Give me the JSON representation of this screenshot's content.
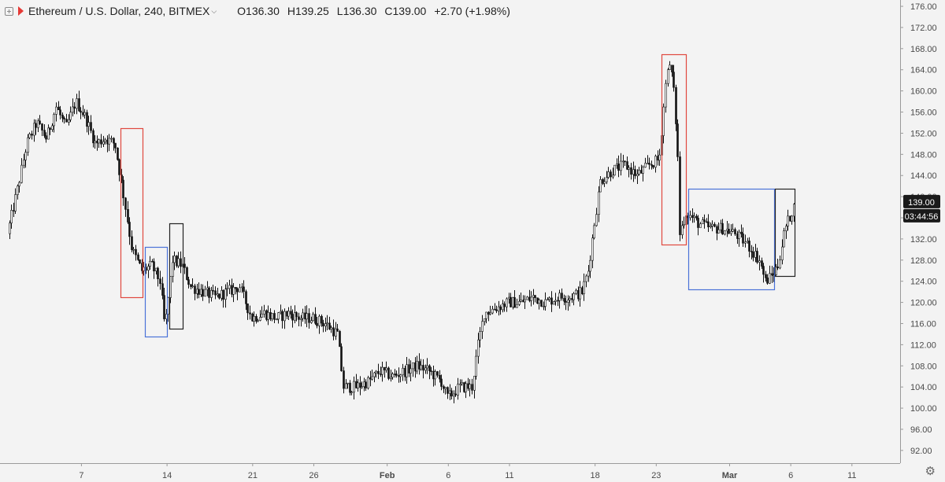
{
  "header": {
    "symbol": "Ethereum / U.S. Dollar, 240, BITMEX",
    "open": "O136.30",
    "high": "H139.25",
    "low": "L136.30",
    "close": "C139.00",
    "change": "+2.70 (+1.98%)"
  },
  "colors": {
    "background": "#f3f3f3",
    "candle": "#111111",
    "red_box": "#e0483f",
    "blue_box": "#4a72d8",
    "black_box": "#222222",
    "price_tag": "#1a1a1a"
  },
  "icons": [
    "expand-icon",
    "red-flag-icon",
    "chevron-down-icon",
    "settings-gear-icon"
  ],
  "chart_data": {
    "type": "candlestick",
    "y_axis": {
      "min": 90,
      "max": 176,
      "ticks": [
        "92.00",
        "96.00",
        "100.00",
        "104.00",
        "108.00",
        "112.00",
        "116.00",
        "120.00",
        "124.00",
        "128.00",
        "132.00",
        "136.00",
        "140.00",
        "144.00",
        "148.00",
        "152.00",
        "156.00",
        "160.00",
        "164.00",
        "168.00",
        "172.00",
        "176.00"
      ]
    },
    "x_axis": {
      "start_date": "Jan 1 2019",
      "end_date": "Mar 13 2019",
      "ticks": [
        {
          "label": "7",
          "day": 7,
          "bold": false
        },
        {
          "label": "14",
          "day": 14,
          "bold": false
        },
        {
          "label": "21",
          "day": 21,
          "bold": false
        },
        {
          "label": "26",
          "day": 26,
          "bold": false
        },
        {
          "label": "Feb",
          "day": 32,
          "bold": true
        },
        {
          "label": "6",
          "day": 37,
          "bold": false
        },
        {
          "label": "11",
          "day": 42,
          "bold": false
        },
        {
          "label": "18",
          "day": 49,
          "bold": false
        },
        {
          "label": "23",
          "day": 54,
          "bold": false
        },
        {
          "label": "Mar",
          "day": 60,
          "bold": true
        },
        {
          "label": "6",
          "day": 65,
          "bold": false
        },
        {
          "label": "11",
          "day": 70,
          "bold": false
        }
      ]
    },
    "price_path": [
      [
        1.0,
        133
      ],
      [
        1.8,
        141
      ],
      [
        2.6,
        150
      ],
      [
        3.4,
        154
      ],
      [
        4.2,
        151
      ],
      [
        5.0,
        157
      ],
      [
        5.8,
        153
      ],
      [
        6.6,
        158
      ],
      [
        7.4,
        155
      ],
      [
        8.2,
        150
      ],
      [
        9.0,
        151
      ],
      [
        9.8,
        150
      ],
      [
        10.6,
        139
      ],
      [
        11.2,
        130
      ],
      [
        12.0,
        126
      ],
      [
        12.8,
        127
      ],
      [
        13.5,
        124
      ],
      [
        13.9,
        115
      ],
      [
        14.5,
        128
      ],
      [
        15.3,
        127
      ],
      [
        16.0,
        123
      ],
      [
        17.0,
        122
      ],
      [
        18.0,
        121
      ],
      [
        19.0,
        122
      ],
      [
        20.0,
        123
      ],
      [
        21.0,
        117
      ],
      [
        22.0,
        118
      ],
      [
        23.0,
        117
      ],
      [
        24.0,
        118
      ],
      [
        25.0,
        117
      ],
      [
        26.0,
        117
      ],
      [
        27.0,
        116
      ],
      [
        28.0,
        114
      ],
      [
        28.5,
        104
      ],
      [
        29.5,
        104
      ],
      [
        30.5,
        105
      ],
      [
        31.5,
        107
      ],
      [
        32.5,
        106
      ],
      [
        33.5,
        107
      ],
      [
        34.5,
        108
      ],
      [
        35.5,
        107
      ],
      [
        36.5,
        105
      ],
      [
        37.0,
        102
      ],
      [
        38.0,
        104
      ],
      [
        39.0,
        104
      ],
      [
        39.5,
        112
      ],
      [
        40.0,
        118
      ],
      [
        41.0,
        119
      ],
      [
        42.0,
        120
      ],
      [
        43.0,
        120
      ],
      [
        44.0,
        121
      ],
      [
        45.0,
        120
      ],
      [
        46.0,
        121
      ],
      [
        47.0,
        121
      ],
      [
        48.0,
        122
      ],
      [
        48.5,
        126
      ],
      [
        49.0,
        135
      ],
      [
        49.5,
        143
      ],
      [
        50.5,
        145
      ],
      [
        51.5,
        146
      ],
      [
        52.5,
        144
      ],
      [
        53.5,
        146
      ],
      [
        54.3,
        147
      ],
      [
        54.7,
        158
      ],
      [
        55.0,
        165
      ],
      [
        55.4,
        163
      ],
      [
        55.8,
        150
      ],
      [
        56.0,
        133
      ],
      [
        56.5,
        137
      ],
      [
        57.5,
        135
      ],
      [
        58.5,
        134
      ],
      [
        59.5,
        134
      ],
      [
        60.5,
        133
      ],
      [
        61.5,
        131
      ],
      [
        62.5,
        128
      ],
      [
        63.0,
        124
      ],
      [
        63.5,
        125
      ],
      [
        64.0,
        127
      ],
      [
        64.6,
        134
      ],
      [
        65.3,
        138
      ]
    ],
    "annotations": [
      {
        "type": "rectangle",
        "color": "red",
        "x0": 10.2,
        "x1": 12.0,
        "y0": 121,
        "y1": 153
      },
      {
        "type": "rectangle",
        "color": "blue",
        "x0": 12.2,
        "x1": 14.0,
        "y0": 113.5,
        "y1": 130.5
      },
      {
        "type": "rectangle",
        "color": "black",
        "x0": 14.2,
        "x1": 15.3,
        "y0": 115,
        "y1": 135
      },
      {
        "type": "rectangle",
        "color": "red",
        "x0": 54.4,
        "x1": 56.4,
        "y0": 131,
        "y1": 167
      },
      {
        "type": "rectangle",
        "color": "blue",
        "x0": 56.6,
        "x1": 63.6,
        "y0": 122.5,
        "y1": 141.5
      },
      {
        "type": "rectangle",
        "color": "black",
        "x0": 63.7,
        "x1": 65.3,
        "y0": 125,
        "y1": 141.5
      }
    ],
    "last_price_label": "139.00",
    "last_price_value": 139.0,
    "countdown_label": "03:44:56",
    "grid": false,
    "legend": "none"
  }
}
